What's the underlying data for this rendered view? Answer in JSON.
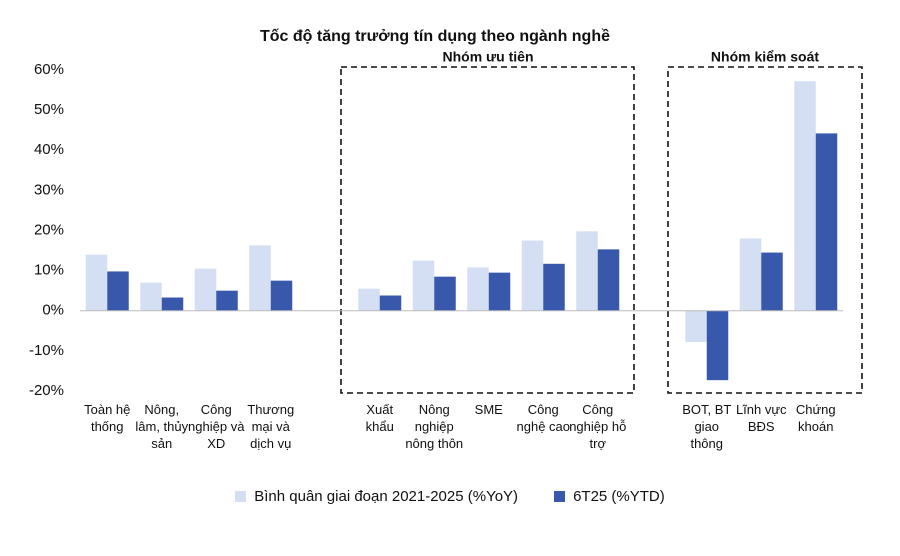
{
  "chart_data": {
    "type": "bar",
    "title": "Tốc độ tăng trưởng tín dụng theo ngành nghề",
    "categories": [
      "Toàn hệ thống",
      "Nông, lâm, thủy sản",
      "Công nghiệp và XD",
      "Thương mại và dịch vụ",
      null,
      "Xuất khẩu",
      "Nông nghiệp nông thôn",
      "SME",
      "Công nghệ cao",
      "Công nghiệp hỗ trợ",
      null,
      "BOT, BT giao thông",
      "Lĩnh vực BĐS",
      "Chứng khoán"
    ],
    "series": [
      {
        "name": "Bình quân giai đoạn 2021-2025 (%YoY)",
        "color": "#d5dff4",
        "values": [
          14,
          7,
          10.5,
          16.3,
          null,
          5.5,
          12.5,
          10.8,
          17.5,
          19.8,
          null,
          -7.8,
          18,
          57.2
        ]
      },
      {
        "name": "6T25 (%YTD)",
        "color": "#3859ab",
        "values": [
          9.8,
          3.3,
          5,
          7.5,
          null,
          3.8,
          8.5,
          9.5,
          11.7,
          15.3,
          null,
          -17.3,
          14.5,
          44.2
        ]
      }
    ],
    "annotations": [
      {
        "text": "Nhóm ưu tiên",
        "color": "#43a047"
      },
      {
        "text": "Nhóm kiểm soát",
        "color": "#e53935"
      }
    ],
    "ylim": [
      -20,
      60
    ],
    "yticks": [
      {
        "value": -20,
        "label": "-20%"
      },
      {
        "value": -10,
        "label": "-10%"
      },
      {
        "value": 0,
        "label": "0%"
      },
      {
        "value": 10,
        "label": "10%"
      },
      {
        "value": 20,
        "label": "20%"
      },
      {
        "value": 30,
        "label": "30%"
      },
      {
        "value": 40,
        "label": "40%"
      },
      {
        "value": 50,
        "label": "50%"
      },
      {
        "value": 60,
        "label": "60%"
      }
    ],
    "grid": false
  }
}
